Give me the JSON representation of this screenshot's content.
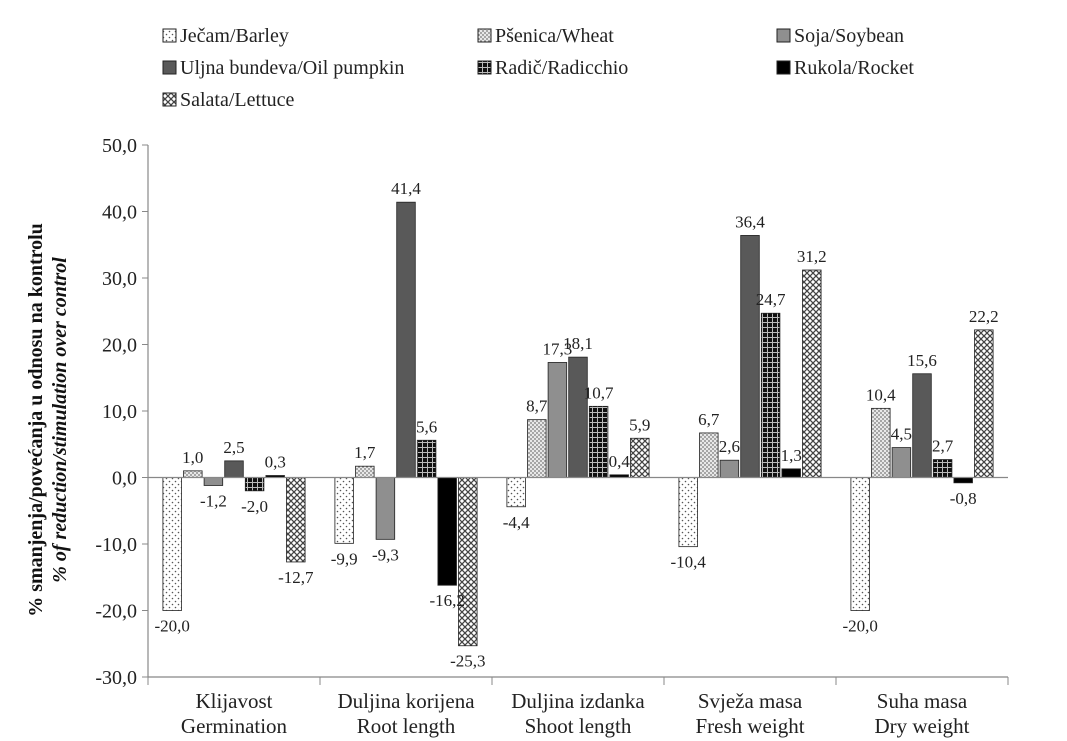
{
  "chart_data": {
    "type": "bar",
    "title": "",
    "ylabel": "% smanjenja/povećanja u odnosu na kontrolu",
    "ylabel2": "% of reduction/stimulation over control",
    "ylim": [
      -30,
      50
    ],
    "ytick_step": 10,
    "ytick_labels": [
      "-30,0",
      "-20,0",
      "-10,0",
      "0,0",
      "10,0",
      "20,0",
      "30,0",
      "40,0",
      "50,0"
    ],
    "grid": false,
    "legend_position": "top",
    "categories": [
      [
        "Klijavost",
        "Germination"
      ],
      [
        "Duljina korijena",
        "Root length"
      ],
      [
        "Duljina izdanka",
        "Shoot length"
      ],
      [
        "Svježa masa",
        "Fresh weight"
      ],
      [
        "Suha masa",
        "Dry weight"
      ]
    ],
    "series": [
      {
        "name": "Ječam/Barley",
        "pattern": "dots",
        "values": [
          -20.0,
          -9.9,
          -4.4,
          -10.4,
          -20.0
        ],
        "labels": [
          "-20,0",
          "-9,9",
          "-4,4",
          "-10,4",
          "-20,0"
        ]
      },
      {
        "name": "Pšenica/Wheat",
        "pattern": "fine",
        "values": [
          1.0,
          1.7,
          8.7,
          6.7,
          10.4
        ],
        "labels": [
          "1,0",
          "1,7",
          "8,7",
          "6,7",
          "10,4"
        ]
      },
      {
        "name": "Soja/Soybean",
        "pattern": "grey",
        "values": [
          -1.2,
          -9.3,
          17.3,
          2.6,
          4.5
        ],
        "labels": [
          "-1,2",
          "-9,3",
          "17,3",
          "2,6",
          "4,5"
        ]
      },
      {
        "name": "Uljna bundeva/Oil pumpkin",
        "pattern": "darkgrey",
        "values": [
          2.5,
          41.4,
          18.1,
          36.4,
          15.6
        ],
        "labels": [
          "2,5",
          "41,4",
          "18,1",
          "36,4",
          "15,6"
        ]
      },
      {
        "name": "Radič/Radicchio",
        "pattern": "grid",
        "values": [
          -2.0,
          5.6,
          10.7,
          24.7,
          2.7
        ],
        "labels": [
          "-2,0",
          "5,6",
          "10,7",
          "24,7",
          "2,7"
        ]
      },
      {
        "name": "Rukola/Rocket",
        "pattern": "black",
        "values": [
          0.3,
          -16.2,
          0.4,
          1.3,
          -0.8
        ],
        "labels": [
          "0,3",
          "-16,2",
          "0,4",
          "1,3",
          "-0,8"
        ]
      },
      {
        "name": "Salata/Lettuce",
        "pattern": "cross",
        "values": [
          -12.7,
          -25.3,
          5.9,
          31.2,
          22.2
        ],
        "labels": [
          "-12,7",
          "-25,3",
          "5,9",
          "31,2",
          "22,2"
        ]
      }
    ]
  }
}
